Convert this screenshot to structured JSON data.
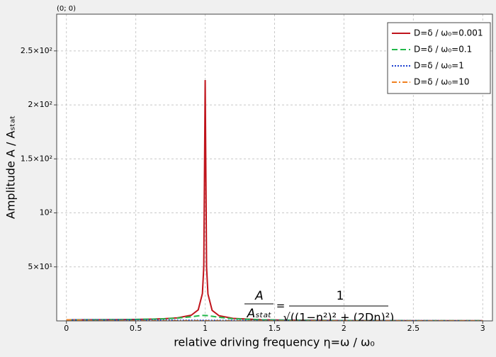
{
  "chart_data": {
    "type": "line",
    "annotation": "(0; 0)",
    "xlabel": "relative driving frequency η=ω / ω₀",
    "ylabel": "Amplitude A / Aₛₜₐₜ",
    "formula": {
      "numerator": "A",
      "denominator": "Aₛₜₐₜ",
      "equals": "=",
      "rhs_numerator": "1",
      "rhs_denominator": "√((1−η²)² + (2Dη)²)"
    },
    "x": [
      0,
      0.2,
      0.4,
      0.6,
      0.7,
      0.8,
      0.9,
      0.95,
      0.98,
      0.99,
      1.0,
      1.01,
      1.02,
      1.05,
      1.1,
      1.2,
      1.4,
      1.6,
      1.8,
      2.0,
      2.5,
      3.0
    ],
    "series": [
      {
        "name": "D=δ / ω₀=0.001",
        "color": "#c0141c",
        "linestyle": "solid",
        "values": [
          1,
          1.04,
          1.19,
          1.56,
          1.96,
          2.78,
          5.26,
          10.26,
          25.25,
          50.25,
          223,
          49.75,
          24.75,
          9.76,
          4.76,
          2.27,
          1.04,
          0.64,
          0.45,
          0.33,
          0.19,
          0.13
        ]
      },
      {
        "name": "D=δ / ω₀=0.1",
        "color": "#22b84a",
        "linestyle": "dashed",
        "values": [
          1,
          1.04,
          1.19,
          1.54,
          1.89,
          2.54,
          3.82,
          4.68,
          5.0,
          5.03,
          5.0,
          4.93,
          4.81,
          4.28,
          3.29,
          2.0,
          1.0,
          0.63,
          0.44,
          0.33,
          0.19,
          0.13
        ]
      },
      {
        "name": "D=δ / ω₀=1",
        "color": "#1a3fcf",
        "linestyle": "dotted",
        "values": [
          1,
          0.96,
          0.86,
          0.74,
          0.67,
          0.61,
          0.55,
          0.53,
          0.51,
          0.505,
          0.5,
          0.495,
          0.49,
          0.48,
          0.45,
          0.41,
          0.34,
          0.28,
          0.24,
          0.2,
          0.14,
          0.1
        ]
      },
      {
        "name": "D=δ / ω₀=10",
        "color": "#f08020",
        "linestyle": "dashdot",
        "values": [
          1,
          0.24,
          0.124,
          0.083,
          0.071,
          0.0625,
          0.056,
          0.053,
          0.051,
          0.0505,
          0.05,
          0.0495,
          0.049,
          0.048,
          0.045,
          0.042,
          0.036,
          0.031,
          0.028,
          0.025,
          0.02,
          0.017
        ]
      }
    ],
    "xlim": [
      -0.07,
      3.07
    ],
    "ylim": [
      0,
      284
    ],
    "xticks": [
      0,
      0.5,
      1,
      1.5,
      2,
      2.5,
      3
    ],
    "yticks": [
      {
        "value": 50,
        "label": "5×10¹"
      },
      {
        "value": 100,
        "label": "10²"
      },
      {
        "value": 150,
        "label": "1.5×10²"
      },
      {
        "value": 200,
        "label": "2×10²"
      },
      {
        "value": 250,
        "label": "2.5×10²"
      }
    ],
    "grid": true,
    "legend": "upper right"
  }
}
